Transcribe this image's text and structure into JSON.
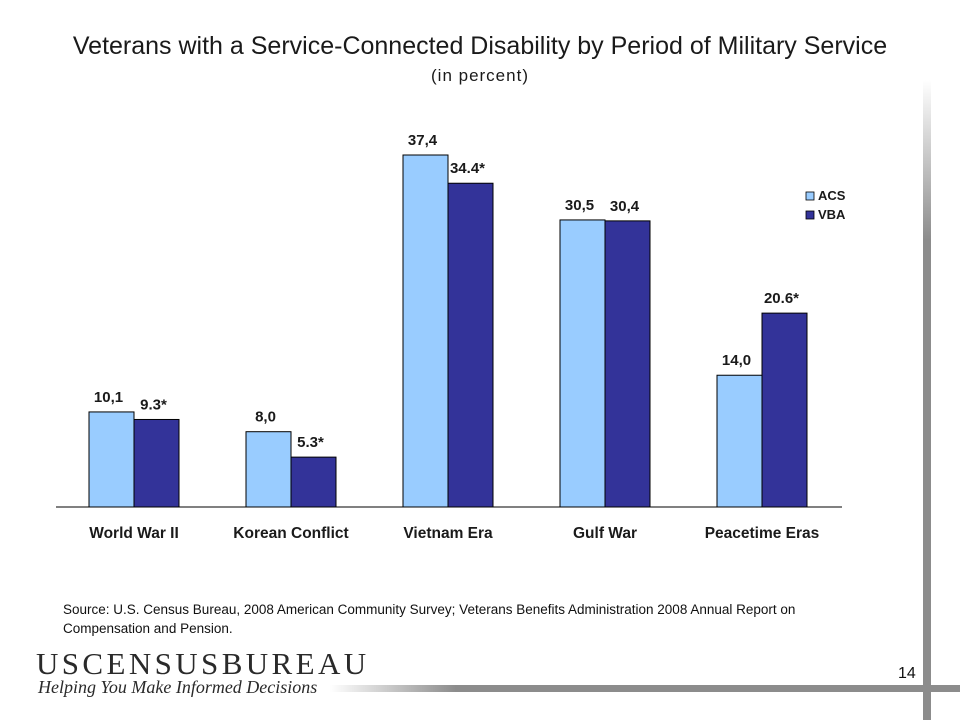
{
  "title": "Veterans with a Service-Connected Disability by Period of Military Service",
  "subtitle": "(in percent)",
  "chart_data": {
    "type": "bar",
    "categories": [
      "World War II",
      "Korean Conflict",
      "Vietnam Era",
      "Gulf War",
      "Peacetime Eras"
    ],
    "series": [
      {
        "name": "ACS",
        "values": [
          10.1,
          8.0,
          37.4,
          30.5,
          14.0
        ],
        "labels": [
          "10,1",
          "8,0",
          "37,4",
          "30,5",
          "14,0"
        ],
        "color": "#99ccff"
      },
      {
        "name": "VBA",
        "values": [
          9.3,
          5.3,
          34.4,
          30.4,
          20.6
        ],
        "labels": [
          "9.3*",
          "5.3*",
          "34.4*",
          "30,4",
          "20.6*"
        ],
        "color": "#333399"
      }
    ],
    "ylim": [
      0,
      37.4
    ],
    "grid": false,
    "legend": "top-right"
  },
  "source": "Source: U.S. Census Bureau, 2008 American Community Survey; Veterans Benefits Administration 2008 Annual Report on Compensation and Pension.",
  "page_number": "14",
  "logo": {
    "wordmark": "USCENSUSBUREAU",
    "tagline": "Helping You Make Informed Decisions"
  }
}
